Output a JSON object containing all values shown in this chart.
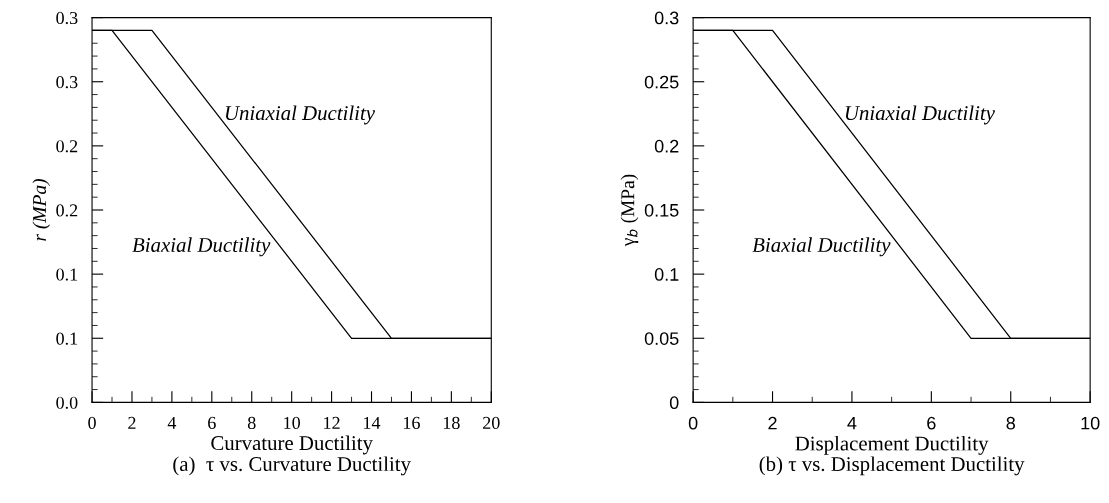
{
  "chart_data": [
    {
      "type": "line",
      "ylabel": "r (MPa)",
      "xlabel": "Curvature Ductility",
      "annotations": [
        "(a)  τ vs. Curvature Ductility"
      ],
      "legend": false,
      "grid": false,
      "marker": "none",
      "line_style": "solid",
      "xlim": [
        0,
        20
      ],
      "ylim": [
        0,
        0.3
      ],
      "xticks": [
        0,
        {
          "value": 1,
          "label": null
        },
        2,
        {
          "value": 3,
          "label": null
        },
        4,
        {
          "value": 5,
          "label": null
        },
        6,
        {
          "value": 7,
          "label": null
        },
        8,
        {
          "value": 9,
          "label": null
        },
        10,
        {
          "value": 11,
          "label": null
        },
        12,
        {
          "value": 13,
          "label": null
        },
        14,
        {
          "value": 15,
          "label": null
        },
        16,
        {
          "value": 17,
          "label": null
        },
        18,
        {
          "value": 19,
          "label": null
        },
        20
      ],
      "yticks": [
        {
          "value": 0,
          "label": "0.0"
        },
        {
          "value": 0.01,
          "label": null
        },
        {
          "value": 0.02,
          "label": null
        },
        {
          "value": 0.03,
          "label": null
        },
        {
          "value": 0.04,
          "label": null
        },
        {
          "value": 0.05,
          "label": "0.1"
        },
        {
          "value": 0.06,
          "label": null
        },
        {
          "value": 0.07,
          "label": null
        },
        {
          "value": 0.08,
          "label": null
        },
        {
          "value": 0.09,
          "label": null
        },
        {
          "value": 0.1,
          "label": "0.1"
        },
        {
          "value": 0.11,
          "label": null
        },
        {
          "value": 0.12,
          "label": null
        },
        {
          "value": 0.13,
          "label": null
        },
        {
          "value": 0.14,
          "label": null
        },
        {
          "value": 0.15,
          "label": "0.2"
        },
        {
          "value": 0.16,
          "label": null
        },
        {
          "value": 0.17,
          "label": null
        },
        {
          "value": 0.18,
          "label": null
        },
        {
          "value": 0.19,
          "label": null
        },
        {
          "value": 0.2,
          "label": "0.2"
        },
        {
          "value": 0.21,
          "label": null
        },
        {
          "value": 0.22,
          "label": null
        },
        {
          "value": 0.23,
          "label": null
        },
        {
          "value": 0.24,
          "label": null
        },
        {
          "value": 0.25,
          "label": "0.3"
        },
        {
          "value": 0.26,
          "label": null
        },
        {
          "value": 0.27,
          "label": null
        },
        {
          "value": 0.28,
          "label": null
        },
        {
          "value": 0.29,
          "label": null
        },
        {
          "value": 0.3,
          "label": "0.3"
        }
      ],
      "series": [
        {
          "name": "Biaxial Ductility",
          "color": "#000000",
          "x": [
            0,
            1,
            13,
            20
          ],
          "values": [
            0.29,
            0.29,
            0.05,
            0.05
          ]
        },
        {
          "name": "Uniaxial Ductility",
          "color": "#000000",
          "x": [
            0,
            3,
            15,
            20
          ],
          "values": [
            0.29,
            0.29,
            0.05,
            0.05
          ]
        }
      ]
    },
    {
      "type": "line",
      "ylabel": "γ$_{b}$ (MPa)",
      "xlabel": "Displacement Ductility",
      "annotations": [
        "(b) τ vs. Displacement Ductility"
      ],
      "legend": false,
      "grid": false,
      "marker": "none",
      "line_style": "solid",
      "xlim": [
        0,
        10
      ],
      "ylim": [
        0,
        0.3
      ],
      "xticks": [
        0,
        {
          "value": 1,
          "label": null
        },
        2,
        {
          "value": 3,
          "label": null
        },
        4,
        {
          "value": 5,
          "label": null
        },
        6,
        {
          "value": 7,
          "label": null
        },
        8,
        {
          "value": 9,
          "label": null
        },
        10
      ],
      "yticks": [
        0,
        {
          "value": 0.01,
          "label": null
        },
        {
          "value": 0.02,
          "label": null
        },
        {
          "value": 0.03,
          "label": null
        },
        {
          "value": 0.04,
          "label": null
        },
        0.05,
        {
          "value": 0.06,
          "label": null
        },
        {
          "value": 0.07,
          "label": null
        },
        {
          "value": 0.08,
          "label": null
        },
        {
          "value": 0.09,
          "label": null
        },
        0.1,
        {
          "value": 0.11,
          "label": null
        },
        {
          "value": 0.12,
          "label": null
        },
        {
          "value": 0.13,
          "label": null
        },
        {
          "value": 0.14,
          "label": null
        },
        0.15,
        {
          "value": 0.16,
          "label": null
        },
        {
          "value": 0.17,
          "label": null
        },
        {
          "value": 0.18,
          "label": null
        },
        {
          "value": 0.19,
          "label": null
        },
        0.2,
        {
          "value": 0.21,
          "label": null
        },
        {
          "value": 0.22,
          "label": null
        },
        {
          "value": 0.23,
          "label": null
        },
        {
          "value": 0.24,
          "label": null
        },
        0.25,
        {
          "value": 0.26,
          "label": null
        },
        {
          "value": 0.27,
          "label": null
        },
        {
          "value": 0.28,
          "label": null
        },
        {
          "value": 0.29,
          "label": null
        },
        0.3
      ],
      "series": [
        {
          "name": "Biaxial Ductility",
          "color": "#000000",
          "x": [
            0,
            1,
            7,
            10
          ],
          "values": [
            0.29,
            0.29,
            0.05,
            0.05
          ]
        },
        {
          "name": "Uniaxial Ductility",
          "color": "#000000",
          "x": [
            0,
            2,
            8,
            10
          ],
          "values": [
            0.29,
            0.29,
            0.05,
            0.05
          ]
        }
      ]
    }
  ]
}
